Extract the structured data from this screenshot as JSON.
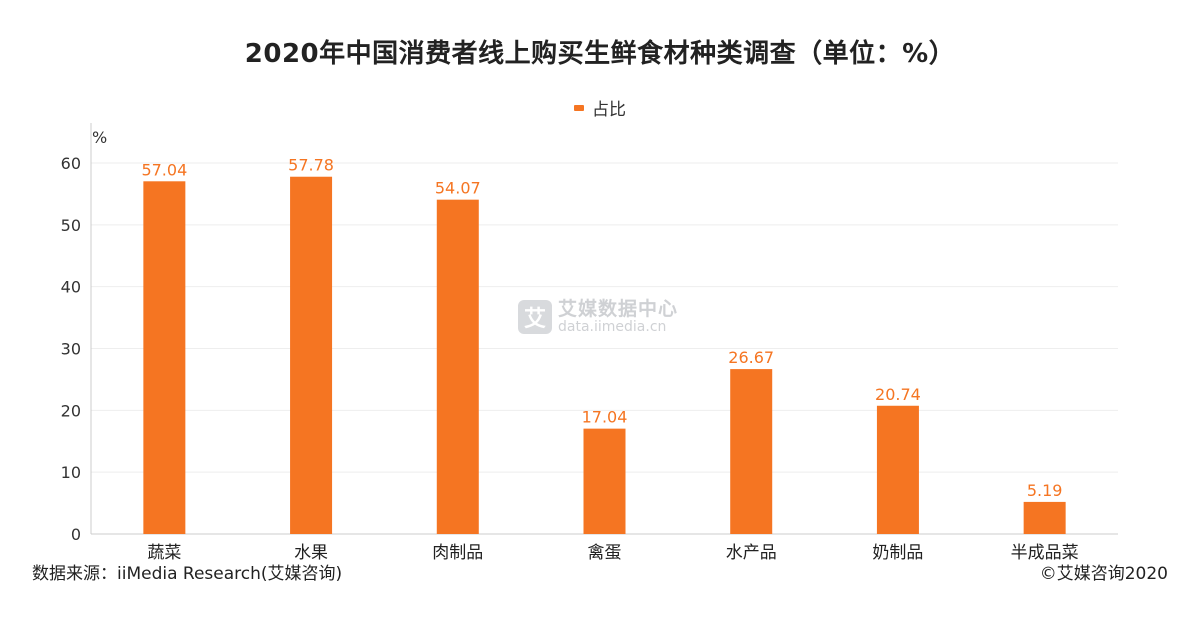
{
  "colors": {
    "bar": "#f57522",
    "label": "#f57522",
    "axis": "#cccccc",
    "grid": "#eeeeee"
  },
  "watermark": {
    "name": "艾媒数据中心",
    "url": "data.iimedia.cn",
    "icon": "艾"
  },
  "footer": {
    "source": "数据来源：iiMedia Research(艾媒咨询)",
    "copyright": "©艾媒咨询2020"
  },
  "chart_data": {
    "type": "bar",
    "title": "2020年中国消费者线上购买生鲜食材种类调查（单位：%）",
    "ylabel": "%",
    "xlabel": "",
    "legend_position": "top-center",
    "ylim": [
      0,
      60
    ],
    "yticks": [
      0,
      10,
      20,
      30,
      40,
      50,
      60
    ],
    "grid": true,
    "categories": [
      "蔬菜",
      "水果",
      "肉制品",
      "禽蛋",
      "水产品",
      "奶制品",
      "半成品菜"
    ],
    "series": [
      {
        "name": "占比",
        "values": [
          57.04,
          57.78,
          54.07,
          17.04,
          26.67,
          20.74,
          5.19
        ]
      }
    ]
  }
}
